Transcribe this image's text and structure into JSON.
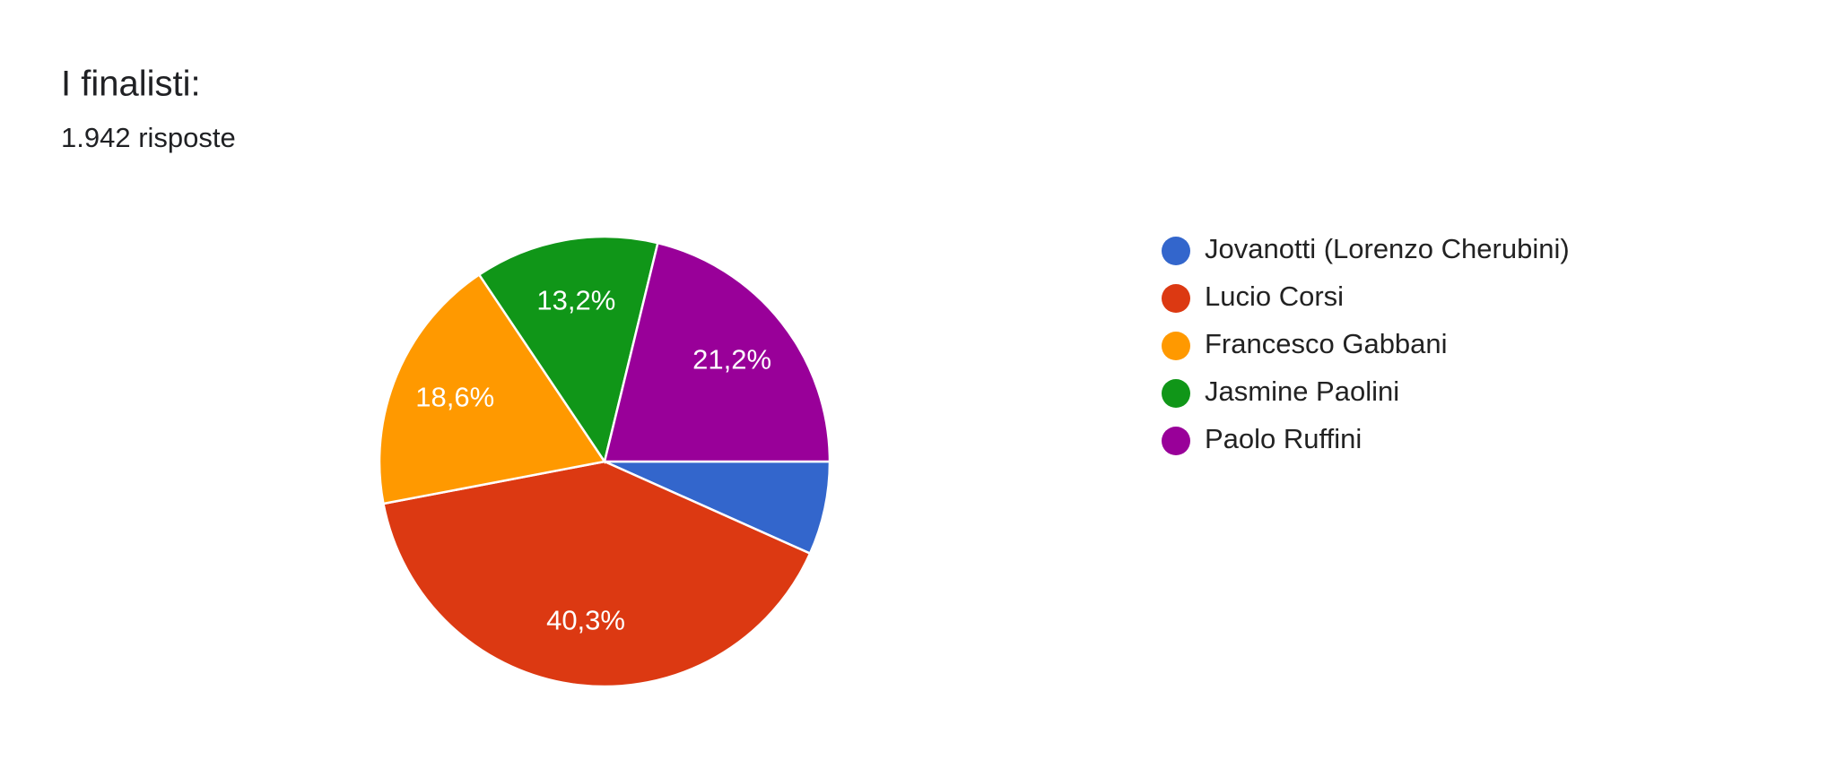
{
  "chart_data": {
    "type": "pie",
    "title": "I finalisti:",
    "subtitle": "1.942 risposte",
    "categories": [
      "Jovanotti (Lorenzo Cherubini)",
      "Lucio Corsi",
      "Francesco Gabbani",
      "Jasmine Paolini",
      "Paolo Ruffini"
    ],
    "values": [
      6.7,
      40.3,
      18.6,
      13.2,
      21.2
    ],
    "value_labels": [
      null,
      "40,3%",
      "18,6%",
      "13,2%",
      "21,2%"
    ],
    "colors": [
      "#3366cc",
      "#dc3912",
      "#ff9900",
      "#109618",
      "#990099"
    ],
    "legend": "right"
  }
}
